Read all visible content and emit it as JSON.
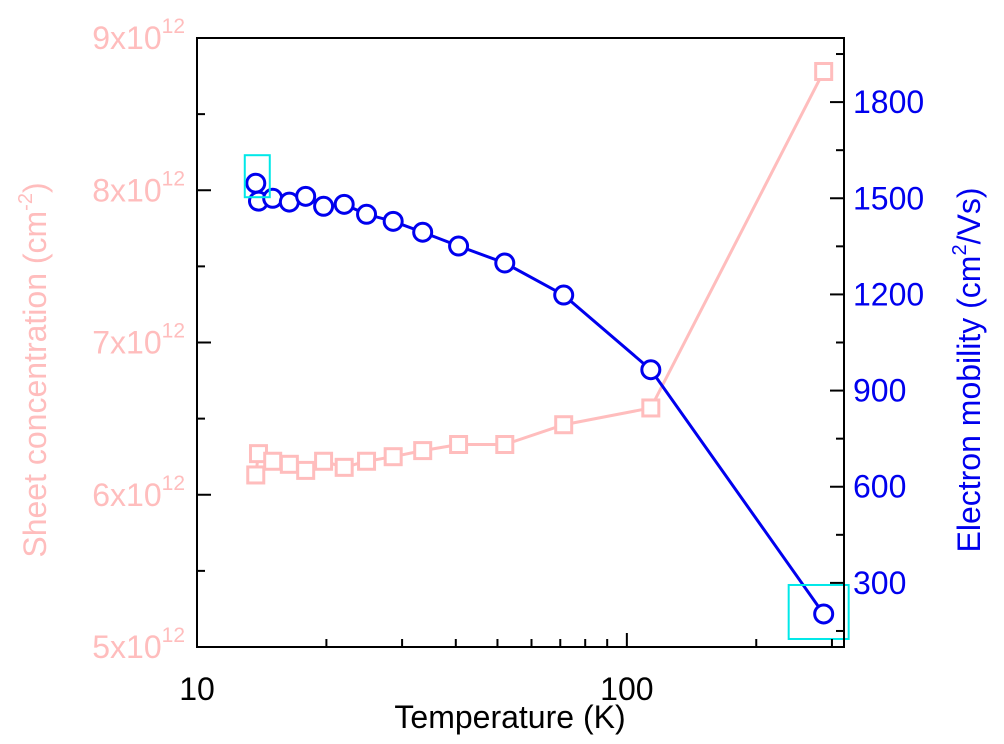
{
  "chart_data": {
    "type": "line",
    "dual_axis": true,
    "x": [
      13.7,
      13.9,
      15.0,
      16.4,
      17.9,
      19.7,
      22.0,
      24.8,
      28.6,
      33.5,
      40.6,
      52.0,
      71.3,
      113.7,
      287
    ],
    "xlabel": "Temperature (K)",
    "xscale": "log",
    "xlim": [
      10,
      320
    ],
    "xticks": [
      "10",
      "100"
    ],
    "grid": false,
    "legend": "none",
    "y_left": {
      "label": "Sheet concentration (cm",
      "label_sup": "-2",
      "label_end": ")",
      "ylim": [
        5000000000000.0,
        9000000000000.0
      ],
      "ticks": [
        {
          "value": 5000000000000.0,
          "base": "5x10",
          "exp": "12"
        },
        {
          "value": 6000000000000.0,
          "base": "6x10",
          "exp": "12"
        },
        {
          "value": 7000000000000.0,
          "base": "7x10",
          "exp": "12"
        },
        {
          "value": 8000000000000.0,
          "base": "8x10",
          "exp": "12"
        },
        {
          "value": 9000000000000.0,
          "base": "9x10",
          "exp": "12"
        }
      ],
      "color": "#ffbdbd"
    },
    "y_right": {
      "label": "Electron mobility (cm",
      "label_sup": "2",
      "label_end": "/Vs)",
      "ylim": [
        100,
        2000
      ],
      "ticks": [
        "300",
        "600",
        "900",
        "1200",
        "1500",
        "1800"
      ],
      "color": "#0000ee"
    },
    "series": [
      {
        "axis": "left",
        "marker": "square",
        "color": "#ffbdbd",
        "values": [
          6130000000000.0,
          6270000000000.0,
          6220000000000.0,
          6200000000000.0,
          6160000000000.0,
          6220000000000.0,
          6180000000000.0,
          6220000000000.0,
          6250000000000.0,
          6290000000000.0,
          6330000000000.0,
          6330000000000.0,
          6460000000000.0,
          6570000000000.0,
          8780000000000.0
        ]
      },
      {
        "axis": "right",
        "marker": "circle",
        "color": "#0000ee",
        "values": [
          1547,
          1491,
          1500,
          1488,
          1506,
          1475,
          1481,
          1450,
          1428,
          1394,
          1351,
          1298,
          1198,
          965,
          203
        ]
      }
    ],
    "highlight_color": "#00e8e8",
    "highlighted_points": [
      {
        "series": 1,
        "index": 0
      },
      {
        "series": 1,
        "index": 14
      }
    ]
  }
}
